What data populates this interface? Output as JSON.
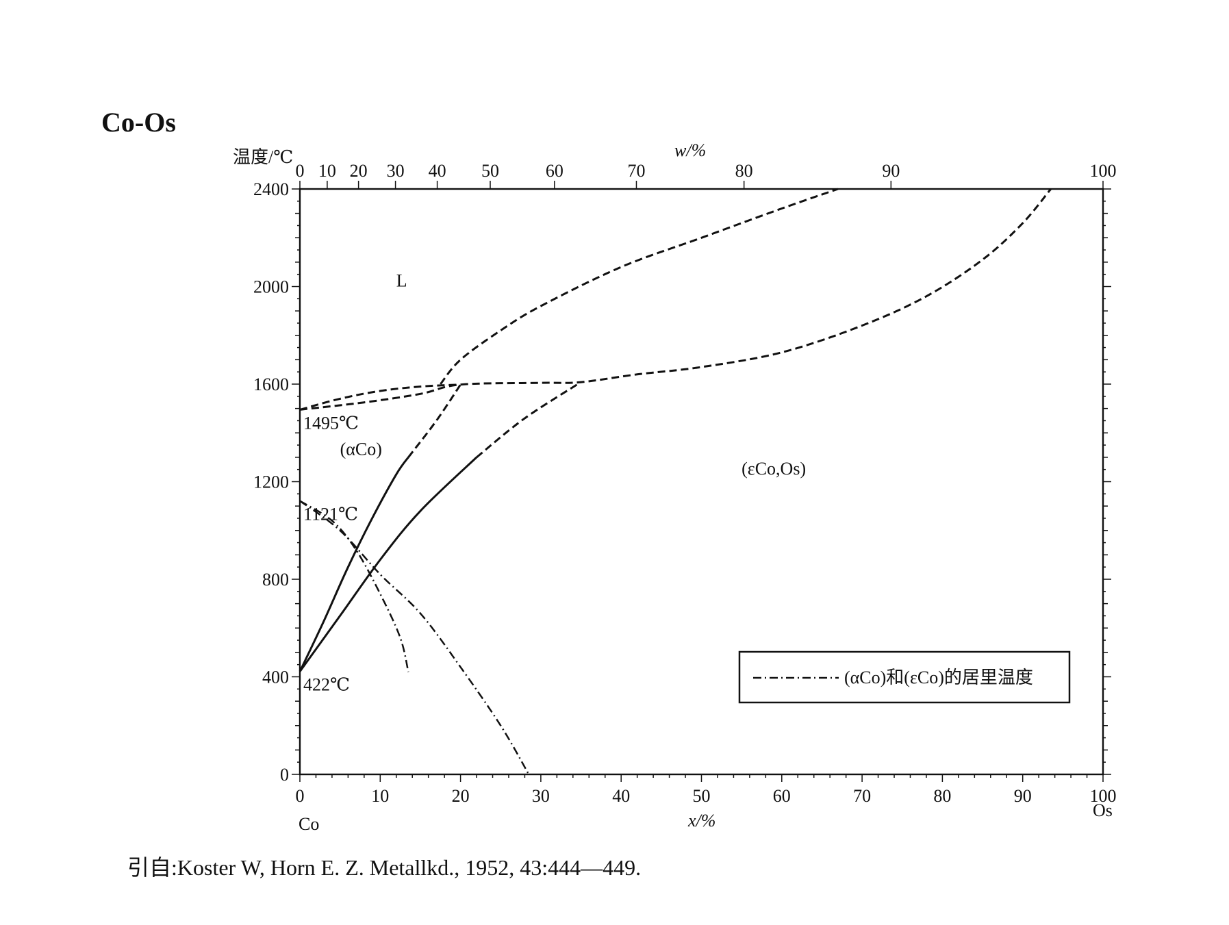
{
  "title": "Co-Os",
  "source": "引自:Koster W, Horn E. Z. Metallkd., 1952, 43:444—449.",
  "chart_data": {
    "type": "line",
    "title": "Co-Os",
    "ylabel": "温度/℃",
    "xlabel_bottom": "x/%",
    "xlabel_top": "w/%",
    "x_left_element": "Co",
    "x_right_element": "Os",
    "ylim": [
      0,
      2400
    ],
    "xlim": [
      0,
      100
    ],
    "y_ticks": [
      "0",
      "400",
      "800",
      "1200",
      "1600",
      "2000",
      "2400"
    ],
    "x_ticks_bottom": [
      "0",
      "10",
      "20",
      "30",
      "40",
      "50",
      "60",
      "70",
      "80",
      "90",
      "100"
    ],
    "x_ticks_top": [
      {
        "label": "0",
        "x": 0
      },
      {
        "label": "10",
        "x": 3.4
      },
      {
        "label": "20",
        "x": 7.3
      },
      {
        "label": "30",
        "x": 11.9
      },
      {
        "label": "40",
        "x": 17.1
      },
      {
        "label": "50",
        "x": 23.7
      },
      {
        "label": "60",
        "x": 31.7
      },
      {
        "label": "70",
        "x": 41.9
      },
      {
        "label": "80",
        "x": 55.3
      },
      {
        "label": "90",
        "x": 73.6
      },
      {
        "label": "100",
        "x": 100
      }
    ],
    "regions": [
      {
        "label": "L",
        "x": 12,
        "y": 2000
      },
      {
        "label": "(αCo)",
        "x": 5,
        "y": 1310
      },
      {
        "label": "(εCo,Os)",
        "x": 55,
        "y": 1230
      }
    ],
    "annotations": [
      {
        "label": "1495℃",
        "x": 0,
        "y": 1495
      },
      {
        "label": "1121℃",
        "x": 0,
        "y": 1121
      },
      {
        "label": "422℃",
        "x": 0,
        "y": 422
      }
    ],
    "series": [
      {
        "style": "dashed",
        "points": [
          [
            0,
            1495
          ],
          [
            5,
            1540
          ],
          [
            10,
            1572
          ],
          [
            15,
            1590
          ],
          [
            20,
            1598
          ]
        ]
      },
      {
        "style": "dashed",
        "points": [
          [
            0,
            1495
          ],
          [
            8,
            1525
          ],
          [
            15,
            1560
          ],
          [
            20,
            1598
          ],
          [
            30,
            1605
          ],
          [
            35,
            1608
          ],
          [
            42,
            1640
          ],
          [
            50,
            1670
          ],
          [
            60,
            1730
          ],
          [
            70,
            1840
          ],
          [
            78,
            1960
          ],
          [
            85,
            2110
          ],
          [
            90,
            2260
          ],
          [
            93.5,
            2400
          ]
        ]
      },
      {
        "style": "dashed",
        "points": [
          [
            17.5,
            1600
          ],
          [
            20,
            1700
          ],
          [
            25,
            1820
          ],
          [
            30,
            1920
          ],
          [
            40,
            2080
          ],
          [
            50,
            2200
          ],
          [
            60,
            2320
          ],
          [
            67,
            2400
          ]
        ]
      },
      {
        "style": "solid",
        "points": [
          [
            0,
            422
          ],
          [
            3,
            630
          ],
          [
            6,
            850
          ],
          [
            9,
            1050
          ],
          [
            12,
            1230
          ],
          [
            13.5,
            1300
          ]
        ]
      },
      {
        "style": "dashed",
        "points": [
          [
            13.5,
            1300
          ],
          [
            17,
            1450
          ],
          [
            20,
            1598
          ]
        ]
      },
      {
        "style": "solid",
        "points": [
          [
            0,
            422
          ],
          [
            5,
            650
          ],
          [
            10,
            880
          ],
          [
            15,
            1080
          ],
          [
            22,
            1300
          ]
        ]
      },
      {
        "style": "dashed",
        "points": [
          [
            22,
            1300
          ],
          [
            28,
            1460
          ],
          [
            35,
            1608
          ]
        ]
      },
      {
        "style": "dashdot",
        "points": [
          [
            0,
            1121
          ],
          [
            4,
            1040
          ],
          [
            7,
            920
          ],
          [
            10,
            740
          ],
          [
            12.5,
            560
          ],
          [
            13.5,
            420
          ]
        ]
      },
      {
        "style": "dashdot",
        "points": [
          [
            0,
            1121
          ],
          [
            5,
            1000
          ],
          [
            10,
            820
          ],
          [
            15,
            660
          ],
          [
            20,
            440
          ],
          [
            25,
            200
          ],
          [
            28.5,
            0
          ]
        ]
      }
    ],
    "legend": {
      "entries": [
        "(αCo)和(εCo)的居里温度"
      ],
      "position": "bottom-right"
    }
  }
}
